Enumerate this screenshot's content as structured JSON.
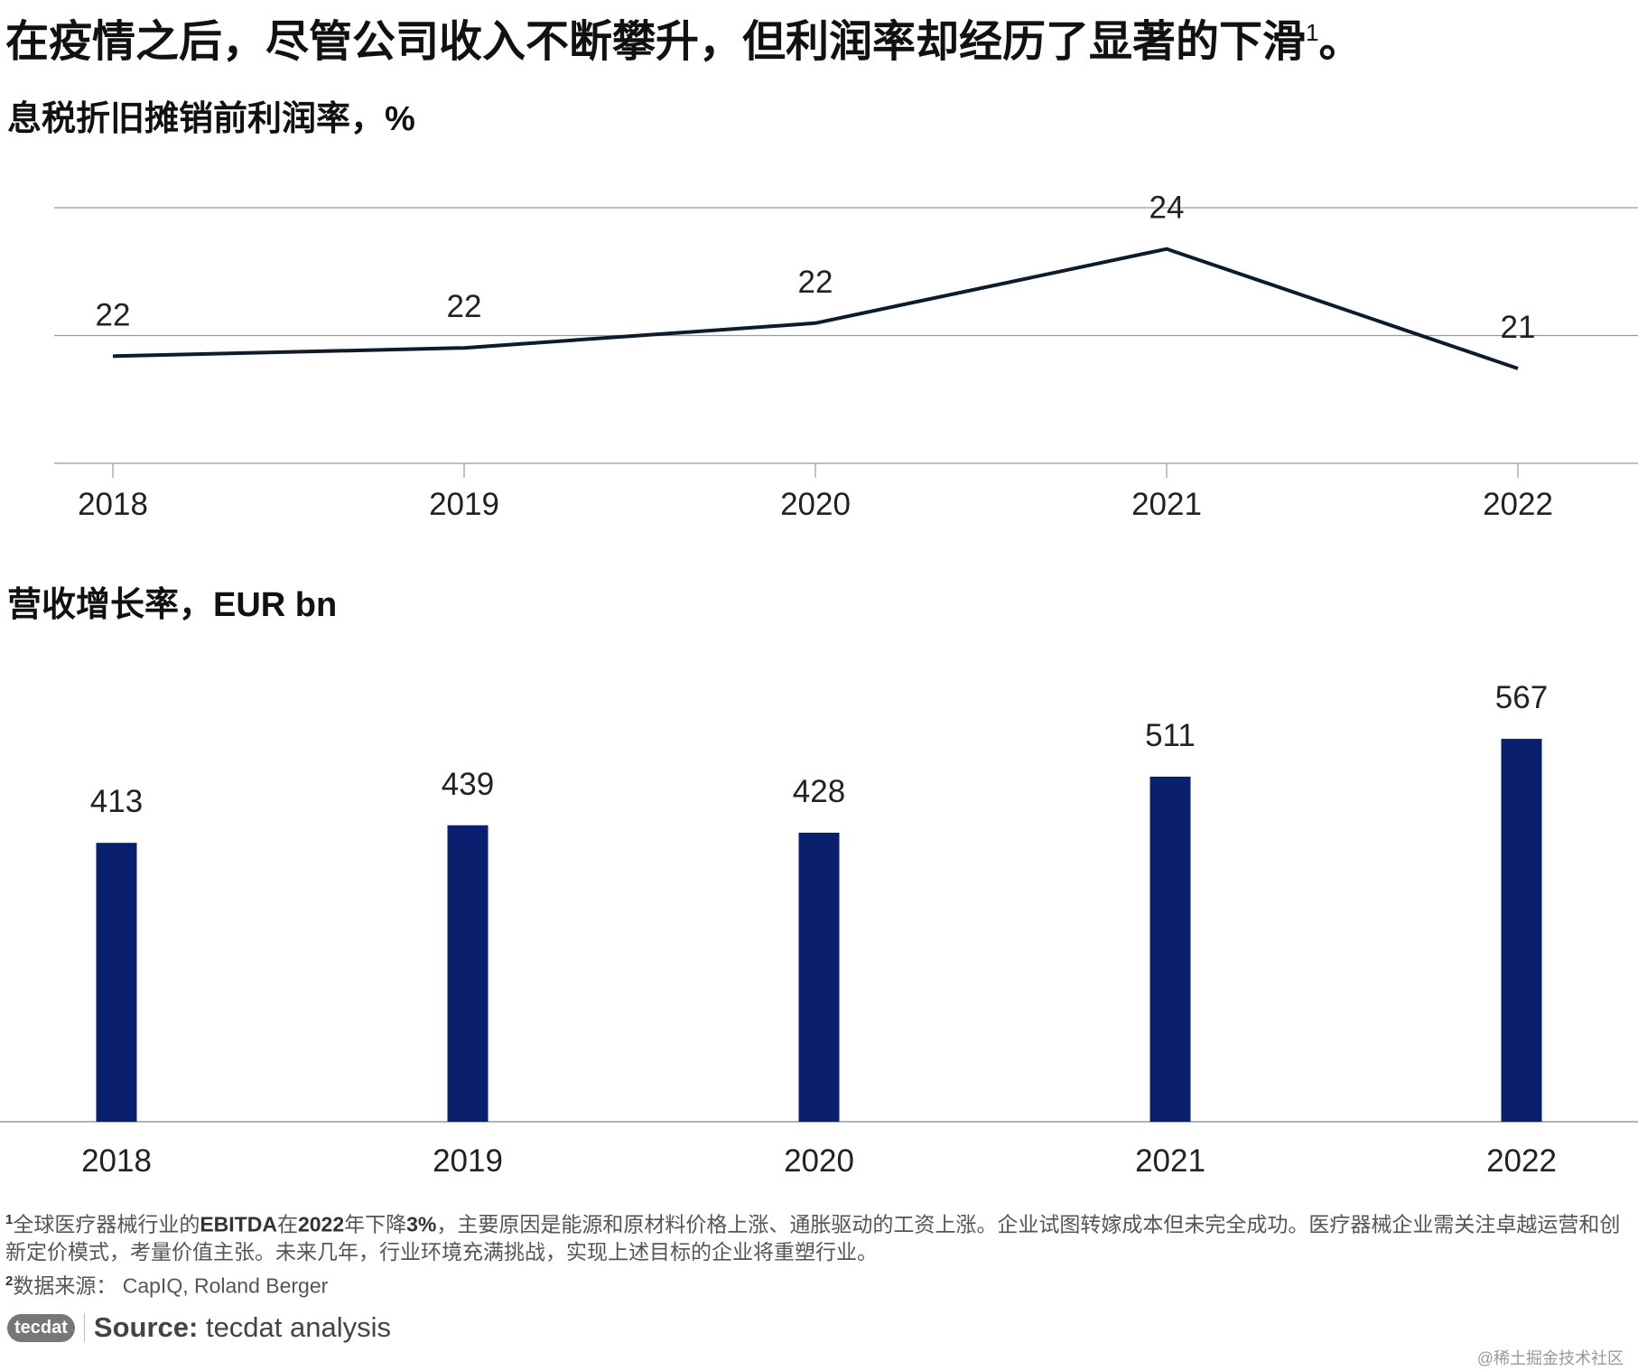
{
  "title": "在疫情之后，尽管公司收入不断攀升，但利润率却经历了显著的下滑",
  "title_sup": "1",
  "title_end": "。",
  "chart_data": [
    {
      "type": "line",
      "title": "息税折旧摊销前利润率，%",
      "categories": [
        "2018",
        "2019",
        "2020",
        "2021",
        "2022"
      ],
      "values": [
        21.6,
        21.8,
        22.4,
        24.2,
        21.3
      ],
      "value_labels": [
        "22",
        "22",
        "22",
        "24",
        "21"
      ],
      "ylim": [
        19,
        25.2
      ],
      "color": "#0d1b2a",
      "grid": true
    },
    {
      "type": "bar",
      "title": "营收增长率，EUR bn",
      "categories": [
        "2018",
        "2019",
        "2020",
        "2021",
        "2022"
      ],
      "values": [
        413,
        439,
        428,
        511,
        567
      ],
      "ylim": [
        0,
        650
      ],
      "color": "#0a1f6e"
    }
  ],
  "footnotes": [
    {
      "marker": "1",
      "parts": [
        {
          "text": "全球医疗器械行业的",
          "bold": false
        },
        {
          "text": "EBITDA",
          "bold": true
        },
        {
          "text": "在",
          "bold": false
        },
        {
          "text": "2022",
          "bold": true
        },
        {
          "text": "年下降",
          "bold": false
        },
        {
          "text": "3%",
          "bold": true
        },
        {
          "text": "，主要原因是能源和原材料价格上涨、通胀驱动的工资上涨。企业试图转嫁成本但未完全成功。医疗器械企业需关注卓越运营和创新定价模式，考量价值主张。未来几年，行业环境充满挑战，实现上述目标的企业将重塑行业。",
          "bold": false
        }
      ]
    },
    {
      "marker": "2",
      "parts": [
        {
          "text": "数据来源：  CapIQ, Roland Berger",
          "bold": false
        }
      ]
    }
  ],
  "source": {
    "logo": "tecdat",
    "label": "Source:",
    "text": "tecdat analysis"
  },
  "watermark": "@稀土掘金技术社区"
}
